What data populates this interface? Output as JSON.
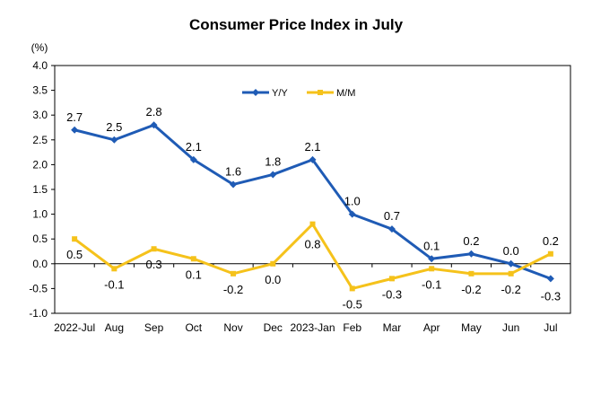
{
  "chart_data": {
    "type": "line",
    "title": "Consumer Price Index in July",
    "unit_label": "(%)",
    "categories": [
      "2022-Jul",
      "Aug",
      "Sep",
      "Oct",
      "Nov",
      "Dec",
      "2023-Jan",
      "Feb",
      "Mar",
      "Apr",
      "May",
      "Jun",
      "Jul"
    ],
    "ylim": [
      -1.0,
      4.0
    ],
    "yticks": [
      "4.0",
      "3.5",
      "3.0",
      "2.5",
      "2.0",
      "1.5",
      "1.0",
      "0.5",
      "0.0",
      "-0.5",
      "-1.0"
    ],
    "legend_position": "top-center",
    "grid": false,
    "series": [
      {
        "name": "Y/Y",
        "color": "#1f5bb5",
        "marker": "diamond",
        "values": [
          2.7,
          2.5,
          2.8,
          2.1,
          1.6,
          1.8,
          2.1,
          1.0,
          0.7,
          0.1,
          0.2,
          0.0,
          -0.3
        ],
        "labels": [
          "2.7",
          "2.5",
          "2.8",
          "2.1",
          "1.6",
          "1.8",
          "2.1",
          "1.0",
          "0.7",
          "0.1",
          "0.2",
          "0.0",
          "-0.3"
        ]
      },
      {
        "name": "M/M",
        "color": "#f5c21b",
        "marker": "square",
        "values": [
          0.5,
          -0.1,
          0.3,
          0.1,
          -0.2,
          0.0,
          0.8,
          -0.5,
          -0.3,
          -0.1,
          -0.2,
          -0.2,
          0.2
        ],
        "labels": [
          "0.5",
          "-0.1",
          "0.3",
          "0.1",
          "-0.2",
          "0.0",
          "0.8",
          "-0.5",
          "-0.3",
          "-0.1",
          "-0.2",
          "-0.2",
          "0.2"
        ]
      }
    ]
  }
}
